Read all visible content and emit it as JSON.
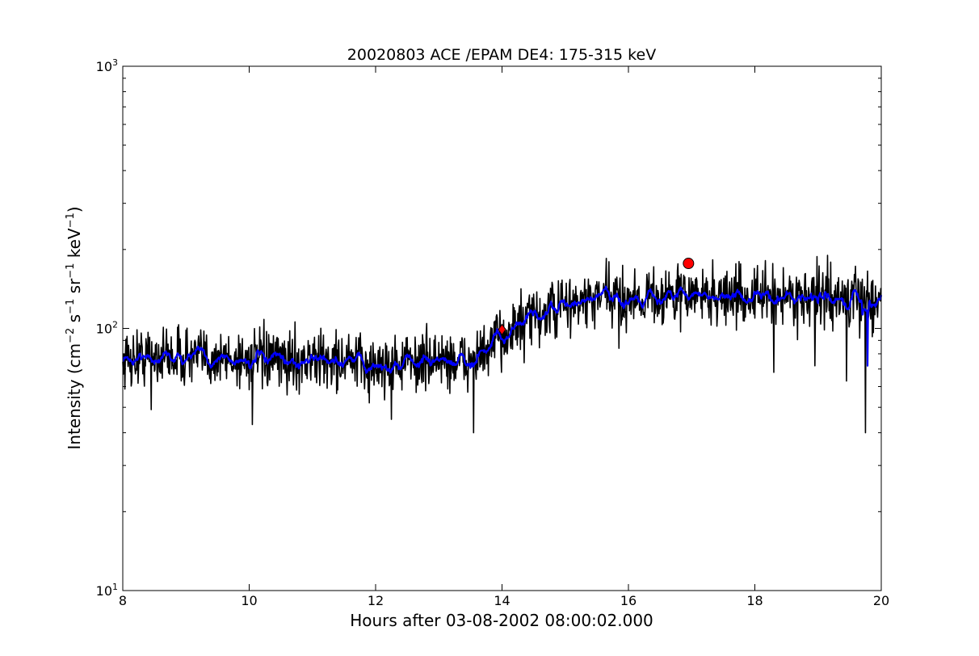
{
  "chart_data": {
    "type": "line",
    "title": "20020803 ACE /EPAM DE4: 175-315 keV",
    "xlabel": "Hours after 03-08-2002 08:00:02.000",
    "ylabel": {
      "prefix": "Intensity (cm",
      "e1": "−2",
      "s": " s",
      "e2": "−1",
      "sr": " sr",
      "e3": "−1",
      "kev": " keV",
      "e4": "−1",
      "suffix": ")"
    },
    "xlim": [
      8,
      20
    ],
    "ylim": [
      10,
      1000
    ],
    "yscale": "log",
    "grid": false,
    "x_ticks": [
      8,
      10,
      12,
      14,
      16,
      18,
      20
    ],
    "y_ticks": [
      {
        "value": 10,
        "base": "10",
        "exp": "1"
      },
      {
        "value": 100,
        "base": "10",
        "exp": "2"
      },
      {
        "value": 1000,
        "base": "10",
        "exp": "3"
      }
    ],
    "series": [
      {
        "color": "#000000",
        "style": "noisy raw data",
        "points": [
          [
            8.0,
            76
          ],
          [
            8.5,
            79
          ],
          [
            9.0,
            78
          ],
          [
            9.5,
            77
          ],
          [
            10.0,
            76
          ],
          [
            10.5,
            75
          ],
          [
            11.0,
            76
          ],
          [
            11.5,
            75
          ],
          [
            12.0,
            72
          ],
          [
            12.5,
            74
          ],
          [
            13.0,
            76
          ],
          [
            13.5,
            74
          ],
          [
            13.8,
            82
          ],
          [
            14.0,
            95
          ],
          [
            14.3,
            104
          ],
          [
            14.6,
            112
          ],
          [
            15.0,
            122
          ],
          [
            15.5,
            128
          ],
          [
            16.0,
            131
          ],
          [
            16.5,
            133
          ],
          [
            17.0,
            134
          ],
          [
            17.5,
            133
          ],
          [
            18.0,
            132
          ],
          [
            18.5,
            133
          ],
          [
            19.0,
            131
          ],
          [
            19.5,
            128
          ],
          [
            20.0,
            128
          ]
        ],
        "spikes": [
          [
            8.45,
            49
          ],
          [
            10.05,
            43
          ],
          [
            11.9,
            52
          ],
          [
            12.25,
            45
          ],
          [
            13.55,
            40
          ],
          [
            14.35,
            74
          ],
          [
            15.85,
            84
          ],
          [
            18.3,
            68
          ],
          [
            18.95,
            72
          ],
          [
            19.45,
            63
          ],
          [
            19.75,
            40
          ],
          [
            15.65,
            185
          ],
          [
            19.15,
            190
          ]
        ]
      },
      {
        "color": "#0000ff",
        "style": "smoothed",
        "points": [
          [
            8.0,
            76
          ],
          [
            8.5,
            79
          ],
          [
            9.0,
            78
          ],
          [
            9.5,
            77
          ],
          [
            10.0,
            76
          ],
          [
            10.5,
            75
          ],
          [
            11.0,
            76
          ],
          [
            11.5,
            75
          ],
          [
            12.0,
            72
          ],
          [
            12.5,
            74
          ],
          [
            13.0,
            76
          ],
          [
            13.5,
            74
          ],
          [
            13.8,
            82
          ],
          [
            14.0,
            95
          ],
          [
            14.3,
            104
          ],
          [
            14.6,
            112
          ],
          [
            15.0,
            122
          ],
          [
            15.5,
            128
          ],
          [
            16.0,
            131
          ],
          [
            16.5,
            133
          ],
          [
            17.0,
            134
          ],
          [
            17.5,
            133
          ],
          [
            18.0,
            132
          ],
          [
            18.5,
            133
          ],
          [
            19.0,
            131
          ],
          [
            19.5,
            128
          ],
          [
            19.78,
            72
          ],
          [
            20.0,
            128
          ]
        ]
      }
    ],
    "markers": [
      {
        "shape": "diamond",
        "color": "#ff0000",
        "x": 14.0,
        "y": 99
      },
      {
        "shape": "circle",
        "color": "#ff0000",
        "x": 16.95,
        "y": 177
      }
    ]
  }
}
